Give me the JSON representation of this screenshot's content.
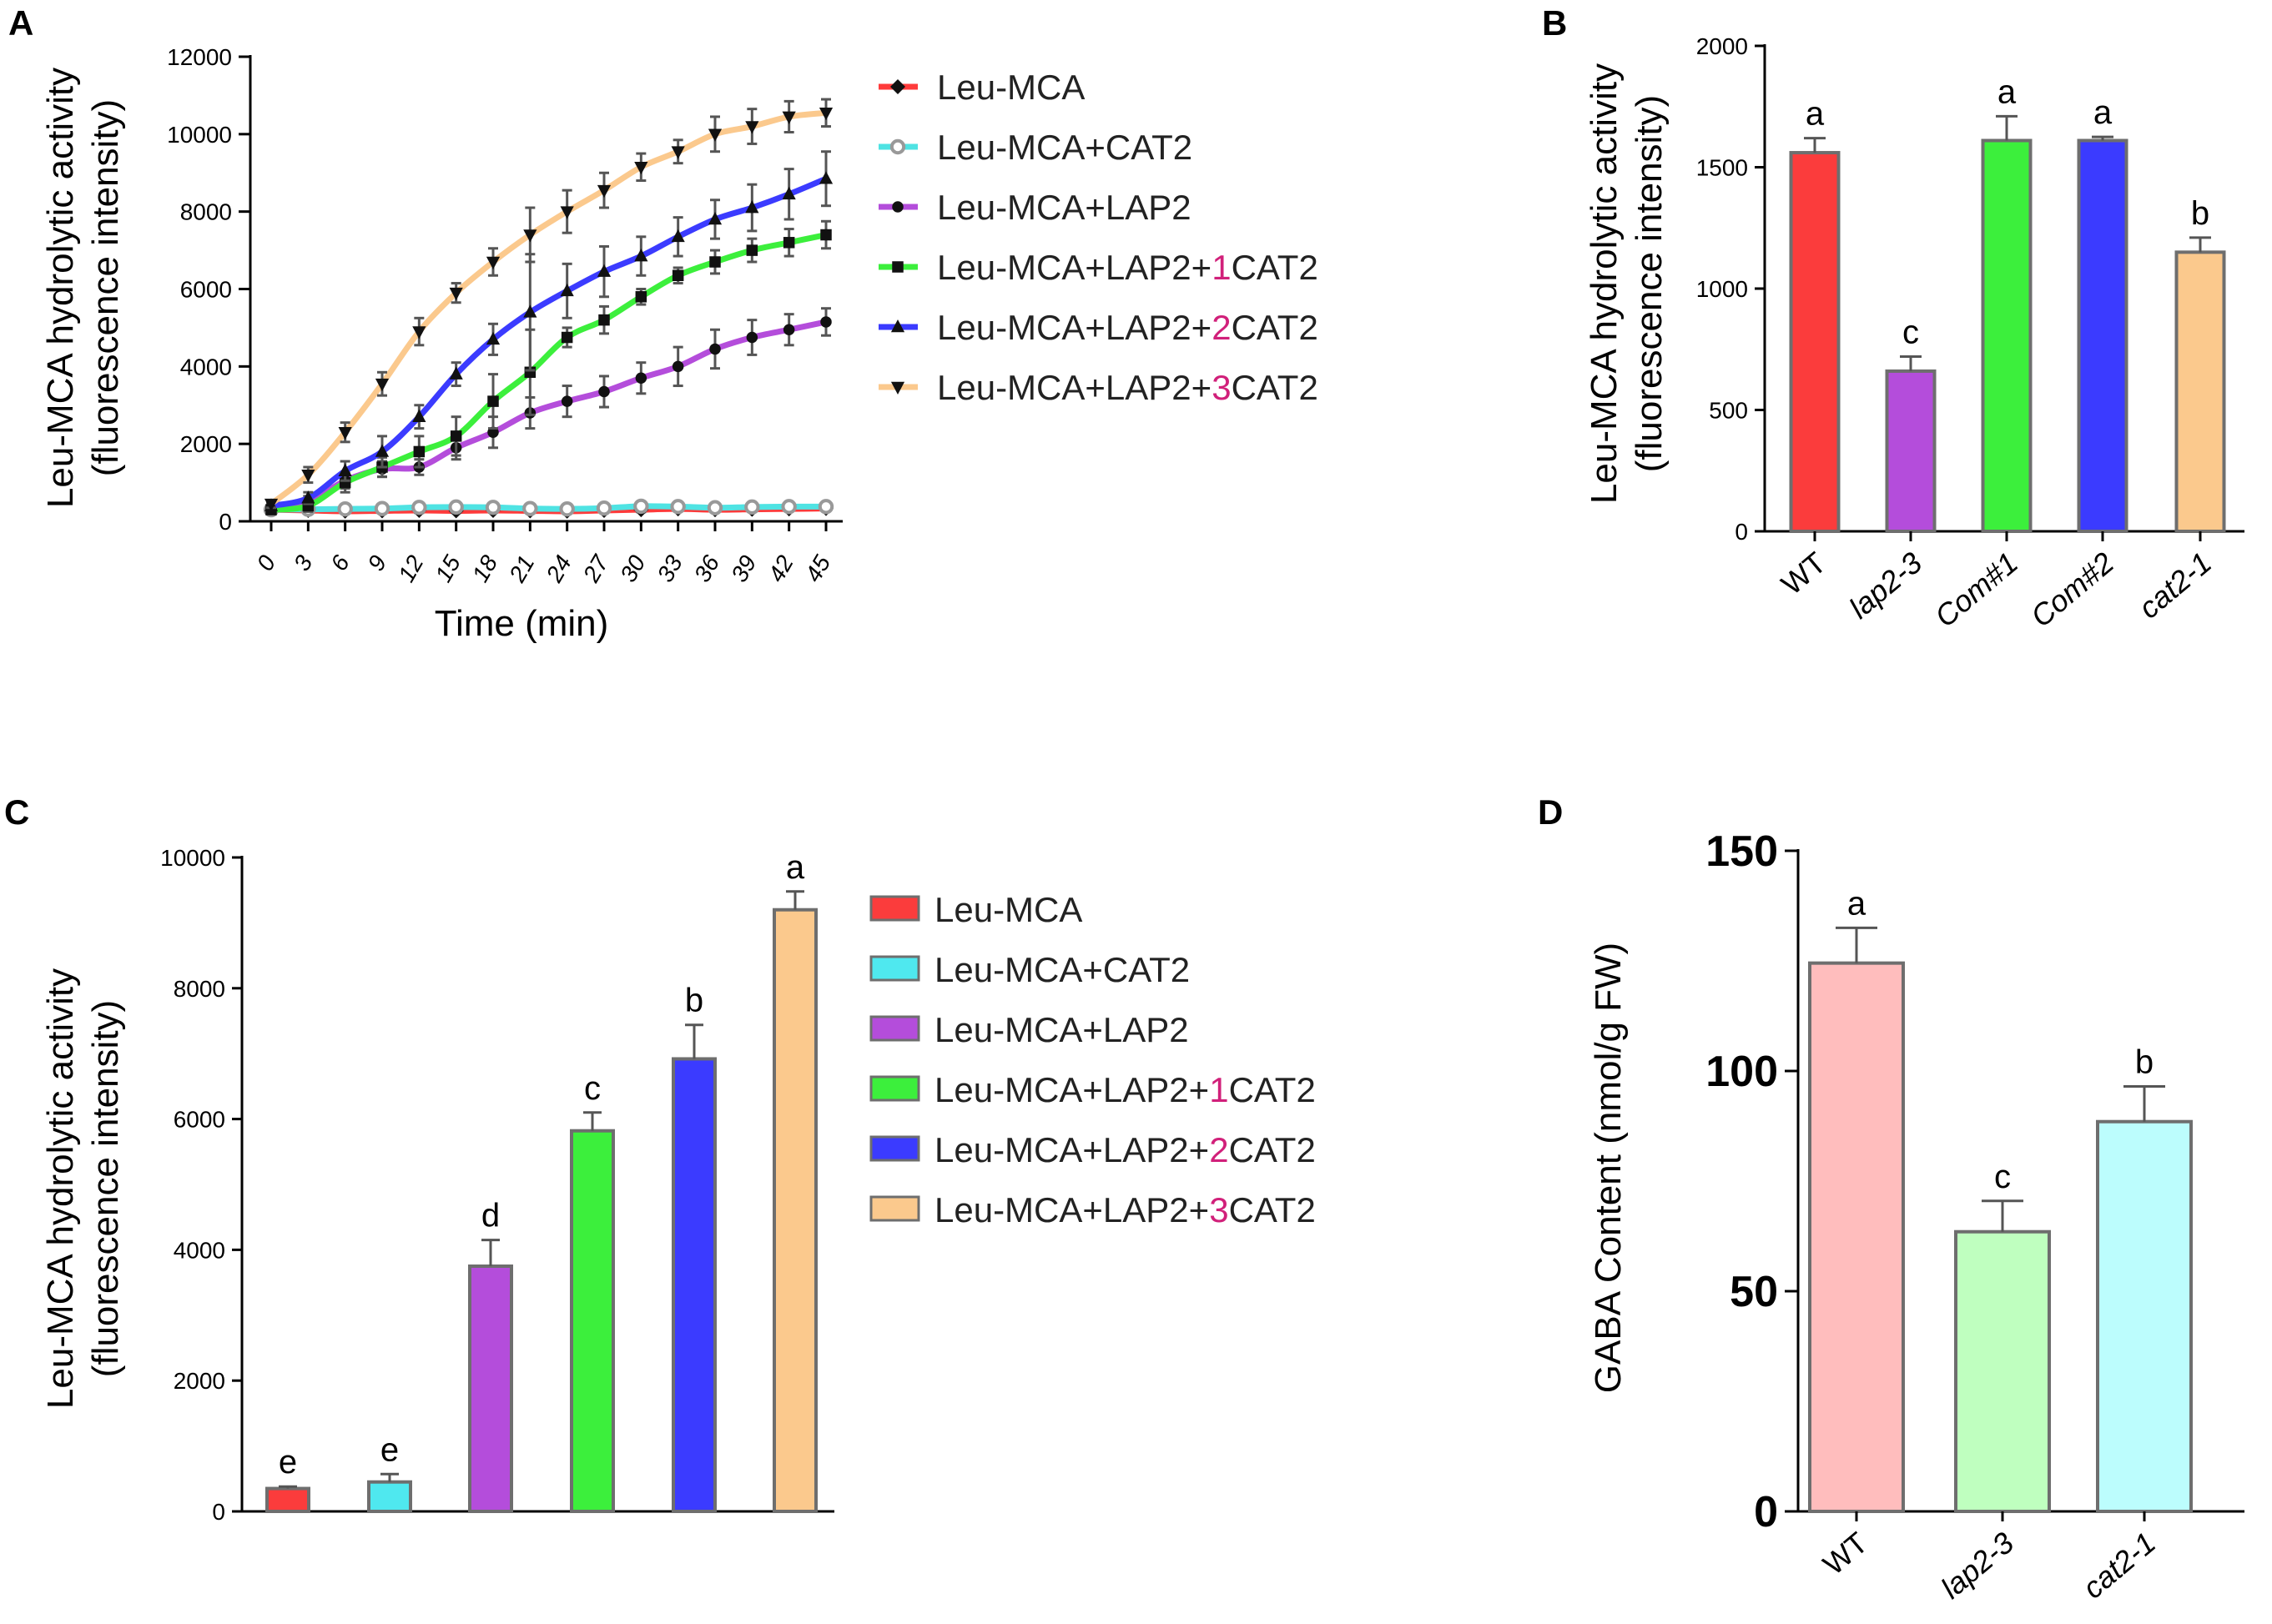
{
  "panels": {
    "A": "A",
    "B": "B",
    "C": "C",
    "D": "D"
  },
  "chart_data": [
    {
      "panel": "A",
      "type": "line",
      "xlabel": "Time (min)",
      "ylabel": [
        "Leu-MCA hydrolytic activity",
        "(fluorescence intensity)"
      ],
      "ylim": [
        0,
        12000
      ],
      "yticks": [
        0,
        2000,
        4000,
        6000,
        8000,
        10000,
        12000
      ],
      "x": [
        0,
        3,
        6,
        9,
        12,
        15,
        18,
        21,
        24,
        27,
        30,
        33,
        36,
        39,
        42,
        45
      ],
      "series": [
        {
          "name": "Leu-MCA",
          "name_parts": [
            "Leu-MCA",
            "",
            ""
          ],
          "color": "#ff3b3b",
          "marker": "diamond",
          "values": [
            300,
            280,
            260,
            270,
            280,
            270,
            280,
            270,
            260,
            280,
            300,
            320,
            300,
            310,
            320,
            330
          ],
          "errors": [
            60,
            50,
            50,
            50,
            60,
            50,
            50,
            50,
            50,
            60,
            60,
            60,
            60,
            60,
            60,
            60
          ]
        },
        {
          "name": "Leu-MCA+CAT2",
          "name_parts": [
            "Leu-MCA+CAT2",
            "",
            ""
          ],
          "color": "#4fe3e3",
          "marker": "circle-open",
          "values": [
            300,
            310,
            320,
            330,
            360,
            370,
            360,
            330,
            320,
            340,
            390,
            380,
            350,
            370,
            380,
            380
          ],
          "errors": [
            80,
            80,
            80,
            80,
            100,
            90,
            90,
            80,
            80,
            90,
            100,
            100,
            90,
            90,
            100,
            100
          ]
        },
        {
          "name": "Leu-MCA+LAP2",
          "name_parts": [
            "Leu-MCA+LAP2",
            "",
            ""
          ],
          "color": "#b44ddb",
          "marker": "circle",
          "values": [
            350,
            500,
            1050,
            1350,
            1400,
            1900,
            2300,
            2800,
            3100,
            3350,
            3700,
            4000,
            4450,
            4750,
            4950,
            5150
          ],
          "errors": [
            100,
            150,
            200,
            200,
            200,
            300,
            400,
            400,
            400,
            400,
            400,
            500,
            500,
            450,
            400,
            350
          ]
        },
        {
          "name": "Leu-MCA+LAP2+1CAT2",
          "name_parts": [
            "Leu-MCA+LAP2+",
            "1",
            "CAT2"
          ],
          "color": "#3cef3c",
          "marker": "square",
          "values": [
            300,
            400,
            1000,
            1400,
            1800,
            2200,
            3100,
            3850,
            4750,
            5200,
            5800,
            6350,
            6700,
            7000,
            7200,
            7400
          ],
          "errors": [
            80,
            150,
            250,
            250,
            400,
            500,
            700,
            1100,
            250,
            350,
            200,
            200,
            300,
            300,
            350,
            350
          ]
        },
        {
          "name": "Leu-MCA+LAP2+2CAT2",
          "name_parts": [
            "Leu-MCA+LAP2+",
            "2",
            "CAT2"
          ],
          "color": "#3b3bff",
          "marker": "triangle-up",
          "values": [
            400,
            600,
            1300,
            1800,
            2700,
            3800,
            4700,
            5400,
            5950,
            6450,
            6850,
            7350,
            7800,
            8100,
            8450,
            8850
          ],
          "errors": [
            100,
            150,
            250,
            400,
            300,
            300,
            400,
            1500,
            700,
            650,
            500,
            500,
            500,
            600,
            650,
            700
          ]
        },
        {
          "name": "Leu-MCA+LAP2+3CAT2",
          "name_parts": [
            "Leu-MCA+LAP2+",
            "3",
            "CAT2"
          ],
          "color": "#fbc98d",
          "marker": "triangle-down",
          "values": [
            450,
            1200,
            2300,
            3550,
            4900,
            5900,
            6700,
            7400,
            8000,
            8550,
            9150,
            9550,
            10000,
            10200,
            10450,
            10550
          ],
          "errors": [
            100,
            200,
            250,
            300,
            350,
            250,
            350,
            700,
            550,
            450,
            350,
            300,
            450,
            450,
            400,
            350
          ]
        }
      ]
    },
    {
      "panel": "B",
      "type": "bar",
      "ylabel": [
        "Leu-MCA hydrolytic activity",
        "(fluorescence intensity)"
      ],
      "ylim": [
        0,
        2000
      ],
      "yticks": [
        0,
        500,
        1000,
        1500,
        2000
      ],
      "categories": [
        "WT",
        "lap2-3",
        "Com#1",
        "Com#2",
        "cat2-1"
      ],
      "values": [
        1560,
        660,
        1610,
        1610,
        1150
      ],
      "errors": [
        60,
        60,
        100,
        15,
        60
      ],
      "letters": [
        "a",
        "c",
        "a",
        "a",
        "b"
      ],
      "colors": [
        "#fb3c3c",
        "#b44ddb",
        "#3cef3c",
        "#3b3bff",
        "#fbc98d"
      ]
    },
    {
      "panel": "C",
      "type": "bar",
      "ylabel": [
        "Leu-MCA hydrolytic activity",
        "(fluorescence intensity)"
      ],
      "ylim": [
        0,
        10000
      ],
      "yticks": [
        0,
        2000,
        4000,
        6000,
        8000,
        10000
      ],
      "categories": [
        "Leu-MCA",
        "Leu-MCA+CAT2",
        "Leu-MCA+LAP2",
        "Leu-MCA+LAP2+1CAT2",
        "Leu-MCA+LAP2+2CAT2",
        "Leu-MCA+LAP2+3CAT2"
      ],
      "legend": [
        {
          "parts": [
            "Leu-MCA",
            "",
            ""
          ]
        },
        {
          "parts": [
            "Leu-MCA+CAT2",
            "",
            ""
          ]
        },
        {
          "parts": [
            "Leu-MCA+LAP2",
            "",
            ""
          ]
        },
        {
          "parts": [
            "Leu-MCA+LAP2+",
            "1",
            "CAT2"
          ]
        },
        {
          "parts": [
            "Leu-MCA+LAP2+",
            "2",
            "CAT2"
          ]
        },
        {
          "parts": [
            "Leu-MCA+LAP2+",
            "3",
            "CAT2"
          ]
        }
      ],
      "values": [
        350,
        450,
        3750,
        5820,
        6920,
        9200
      ],
      "errors": [
        30,
        120,
        400,
        280,
        520,
        280
      ],
      "letters": [
        "e",
        "e",
        "d",
        "c",
        "b",
        "a"
      ],
      "colors": [
        "#fb3c3c",
        "#4fe8ef",
        "#b44ddb",
        "#3cef3c",
        "#3b3bff",
        "#fbc98d"
      ]
    },
    {
      "panel": "D",
      "type": "bar",
      "ylabel": [
        "GABA Content (nmol/g FW)"
      ],
      "ylim": [
        0,
        150
      ],
      "yticks": [
        0,
        50,
        100,
        150
      ],
      "categories": [
        "WT",
        "lap2-3",
        "cat2-1"
      ],
      "values": [
        124.5,
        63.5,
        88.5
      ],
      "errors": [
        8,
        7,
        8
      ],
      "letters": [
        "a",
        "c",
        "b"
      ],
      "colors": [
        "#ffbdbd",
        "#bfffbf",
        "#bcfdfd"
      ]
    }
  ],
  "legend_number_color": "#d1207a"
}
